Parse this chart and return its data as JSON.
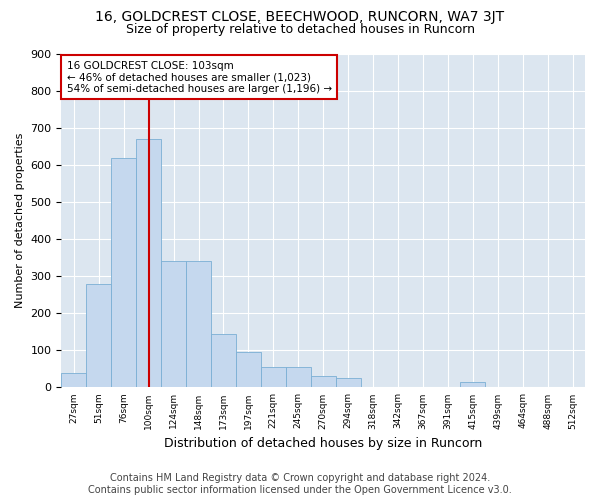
{
  "title": "16, GOLDCREST CLOSE, BEECHWOOD, RUNCORN, WA7 3JT",
  "subtitle": "Size of property relative to detached houses in Runcorn",
  "xlabel": "Distribution of detached houses by size in Runcorn",
  "ylabel": "Number of detached properties",
  "bar_color": "#c5d8ee",
  "bar_edge_color": "#7aafd4",
  "background_color": "#dce6f0",
  "grid_color": "#ffffff",
  "annotation_box_color": "#cc0000",
  "vline_color": "#cc0000",
  "vline_x": 3,
  "annotation_lines": [
    "16 GOLDCREST CLOSE: 103sqm",
    "← 46% of detached houses are smaller (1,023)",
    "54% of semi-detached houses are larger (1,196) →"
  ],
  "bins": [
    "27sqm",
    "51sqm",
    "76sqm",
    "100sqm",
    "124sqm",
    "148sqm",
    "173sqm",
    "197sqm",
    "221sqm",
    "245sqm",
    "270sqm",
    "294sqm",
    "318sqm",
    "342sqm",
    "367sqm",
    "391sqm",
    "415sqm",
    "439sqm",
    "464sqm",
    "488sqm",
    "512sqm"
  ],
  "values": [
    40,
    280,
    620,
    670,
    340,
    340,
    145,
    95,
    55,
    55,
    30,
    25,
    0,
    0,
    0,
    0,
    15,
    0,
    0,
    0,
    0
  ],
  "ylim": [
    0,
    900
  ],
  "yticks": [
    0,
    100,
    200,
    300,
    400,
    500,
    600,
    700,
    800,
    900
  ],
  "footer": "Contains HM Land Registry data © Crown copyright and database right 2024.\nContains public sector information licensed under the Open Government Licence v3.0.",
  "title_fontsize": 10,
  "subtitle_fontsize": 9,
  "ylabel_fontsize": 8,
  "xlabel_fontsize": 9,
  "footer_fontsize": 7
}
